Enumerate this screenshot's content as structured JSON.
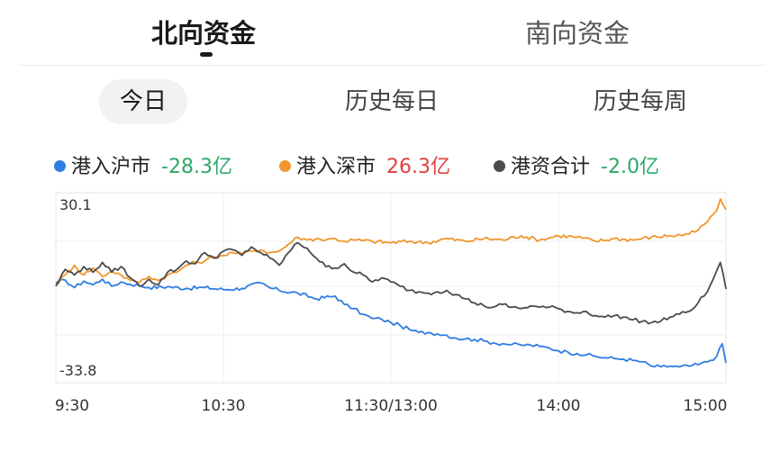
{
  "top_tabs": [
    {
      "label": "北向资金",
      "active": true
    },
    {
      "label": "南向资金",
      "active": false
    }
  ],
  "range_tabs": [
    {
      "label": "今日",
      "active": true
    },
    {
      "label": "历史每日",
      "active": false
    },
    {
      "label": "历史每周",
      "active": false
    }
  ],
  "colors": {
    "hu": "#2f7de1",
    "shen": "#f0962c",
    "total": "#4b4b4b",
    "negative": "#2ea868",
    "positive": "#e04040"
  },
  "chart_data": {
    "type": "line",
    "x_ticks": [
      "9:30",
      "10:30",
      "11:30/13:00",
      "14:00",
      "15:00"
    ],
    "y_ticks": [
      "30.1",
      "-33.8"
    ],
    "ylim": [
      -33.8,
      30.1
    ],
    "legend_position": "top",
    "grid": true,
    "series": [
      {
        "name": "港入沪市",
        "value_label": "-28.3亿",
        "color": "#2f7de1",
        "points": [
          [
            0,
            0
          ],
          [
            5,
            1.2
          ],
          [
            10,
            -1.5
          ],
          [
            15,
            0.8
          ],
          [
            20,
            -0.5
          ],
          [
            25,
            1.5
          ],
          [
            30,
            -1
          ],
          [
            35,
            0.5
          ],
          [
            40,
            -0.3
          ],
          [
            45,
            -0.8
          ],
          [
            50,
            -1.5
          ],
          [
            60,
            -1.2
          ],
          [
            70,
            -1.8
          ],
          [
            80,
            -1.5
          ],
          [
            90,
            -2.2
          ],
          [
            100,
            -1.8
          ],
          [
            110,
            0.2
          ],
          [
            115,
            -1.6
          ],
          [
            120,
            -2.5
          ],
          [
            130,
            -3.5
          ],
          [
            140,
            -5.5
          ],
          [
            150,
            -4.5
          ],
          [
            155,
            -7.5
          ],
          [
            160,
            -9
          ],
          [
            165,
            -11
          ],
          [
            170,
            -12.5
          ],
          [
            175,
            -12.8
          ],
          [
            180,
            -14
          ],
          [
            185,
            -15
          ],
          [
            190,
            -16.5
          ],
          [
            195,
            -17.5
          ],
          [
            200,
            -17.5
          ],
          [
            205,
            -18
          ],
          [
            210,
            -18.5
          ],
          [
            215,
            -19.5
          ],
          [
            220,
            -19.8
          ],
          [
            225,
            -20
          ],
          [
            230,
            -20.5
          ],
          [
            235,
            -21.2
          ],
          [
            240,
            -21.5
          ],
          [
            245,
            -21.8
          ],
          [
            250,
            -22
          ],
          [
            255,
            -22
          ],
          [
            260,
            -22.5
          ],
          [
            265,
            -23
          ],
          [
            270,
            -24
          ],
          [
            275,
            -24.5
          ],
          [
            280,
            -25
          ],
          [
            285,
            -25.5
          ],
          [
            290,
            -26
          ],
          [
            295,
            -26.5
          ],
          [
            300,
            -26.8
          ],
          [
            305,
            -27
          ],
          [
            310,
            -27.5
          ],
          [
            315,
            -28
          ],
          [
            320,
            -29.5
          ],
          [
            325,
            -29.8
          ],
          [
            330,
            -29.5
          ],
          [
            335,
            -29.8
          ],
          [
            340,
            -29.5
          ],
          [
            345,
            -29
          ],
          [
            350,
            -28
          ],
          [
            355,
            -26
          ],
          [
            358,
            -21.5
          ],
          [
            360,
            -28.3
          ]
        ]
      },
      {
        "name": "港入深市",
        "value_label": "26.3亿",
        "color": "#f0962c",
        "points": [
          [
            0,
            -0.5
          ],
          [
            5,
            3
          ],
          [
            10,
            6.5
          ],
          [
            15,
            3
          ],
          [
            20,
            5.5
          ],
          [
            25,
            2.5
          ],
          [
            30,
            4.5
          ],
          [
            35,
            3
          ],
          [
            40,
            1
          ],
          [
            45,
            0.5
          ],
          [
            50,
            2.5
          ],
          [
            55,
            1
          ],
          [
            60,
            3
          ],
          [
            65,
            4
          ],
          [
            70,
            6.5
          ],
          [
            75,
            7.5
          ],
          [
            80,
            8
          ],
          [
            85,
            9.5
          ],
          [
            90,
            10
          ],
          [
            95,
            11
          ],
          [
            100,
            10.5
          ],
          [
            105,
            11.5
          ],
          [
            110,
            12
          ],
          [
            115,
            11
          ],
          [
            120,
            11.5
          ],
          [
            125,
            14
          ],
          [
            130,
            16.5
          ],
          [
            135,
            15.5
          ],
          [
            140,
            16
          ],
          [
            145,
            15.5
          ],
          [
            150,
            16
          ],
          [
            155,
            15
          ],
          [
            160,
            15.5
          ],
          [
            170,
            15
          ],
          [
            180,
            14.5
          ],
          [
            190,
            15
          ],
          [
            200,
            14.5
          ],
          [
            210,
            16
          ],
          [
            220,
            15
          ],
          [
            230,
            16
          ],
          [
            240,
            15.5
          ],
          [
            250,
            17
          ],
          [
            260,
            15.5
          ],
          [
            270,
            17
          ],
          [
            280,
            16.5
          ],
          [
            290,
            15
          ],
          [
            300,
            16
          ],
          [
            310,
            15.5
          ],
          [
            320,
            16.5
          ],
          [
            330,
            17
          ],
          [
            340,
            17.5
          ],
          [
            345,
            19
          ],
          [
            350,
            22
          ],
          [
            355,
            26
          ],
          [
            357,
            30.1
          ],
          [
            360,
            26.3
          ]
        ]
      },
      {
        "name": "港资合计",
        "value_label": "-2.0亿",
        "color": "#4b4b4b",
        "points": [
          [
            0,
            -1
          ],
          [
            5,
            5
          ],
          [
            10,
            3
          ],
          [
            15,
            6
          ],
          [
            20,
            4
          ],
          [
            25,
            7.5
          ],
          [
            30,
            4
          ],
          [
            35,
            6
          ],
          [
            40,
            2
          ],
          [
            45,
            -1
          ],
          [
            50,
            1.5
          ],
          [
            55,
            -0.5
          ],
          [
            60,
            4
          ],
          [
            65,
            5
          ],
          [
            70,
            8
          ],
          [
            75,
            7
          ],
          [
            80,
            11
          ],
          [
            85,
            9
          ],
          [
            90,
            11.5
          ],
          [
            95,
            12
          ],
          [
            100,
            10
          ],
          [
            105,
            13
          ],
          [
            110,
            11
          ],
          [
            115,
            9
          ],
          [
            120,
            6.5
          ],
          [
            125,
            11
          ],
          [
            130,
            14.5
          ],
          [
            135,
            12.5
          ],
          [
            140,
            9
          ],
          [
            145,
            6
          ],
          [
            150,
            5.5
          ],
          [
            155,
            7
          ],
          [
            160,
            4
          ],
          [
            165,
            3
          ],
          [
            170,
            0.5
          ],
          [
            175,
            2
          ],
          [
            180,
            0.5
          ],
          [
            185,
            -1
          ],
          [
            190,
            -2.5
          ],
          [
            195,
            -3
          ],
          [
            200,
            -3.5
          ],
          [
            205,
            -3
          ],
          [
            210,
            -2.5
          ],
          [
            215,
            -4
          ],
          [
            220,
            -5.5
          ],
          [
            225,
            -7
          ],
          [
            230,
            -8
          ],
          [
            235,
            -8.5
          ],
          [
            240,
            -7.5
          ],
          [
            245,
            -8.5
          ],
          [
            250,
            -9
          ],
          [
            255,
            -8
          ],
          [
            260,
            -8.5
          ],
          [
            265,
            -8.5
          ],
          [
            270,
            -9
          ],
          [
            275,
            -10
          ],
          [
            280,
            -10.5
          ],
          [
            285,
            -10
          ],
          [
            290,
            -11.5
          ],
          [
            295,
            -12
          ],
          [
            300,
            -11.5
          ],
          [
            305,
            -12
          ],
          [
            310,
            -13
          ],
          [
            315,
            -13.5
          ],
          [
            320,
            -14
          ],
          [
            325,
            -13.5
          ],
          [
            330,
            -12
          ],
          [
            335,
            -11
          ],
          [
            340,
            -10
          ],
          [
            345,
            -7
          ],
          [
            350,
            -3
          ],
          [
            355,
            4.5
          ],
          [
            357,
            7.5
          ],
          [
            360,
            -2
          ]
        ]
      }
    ]
  }
}
